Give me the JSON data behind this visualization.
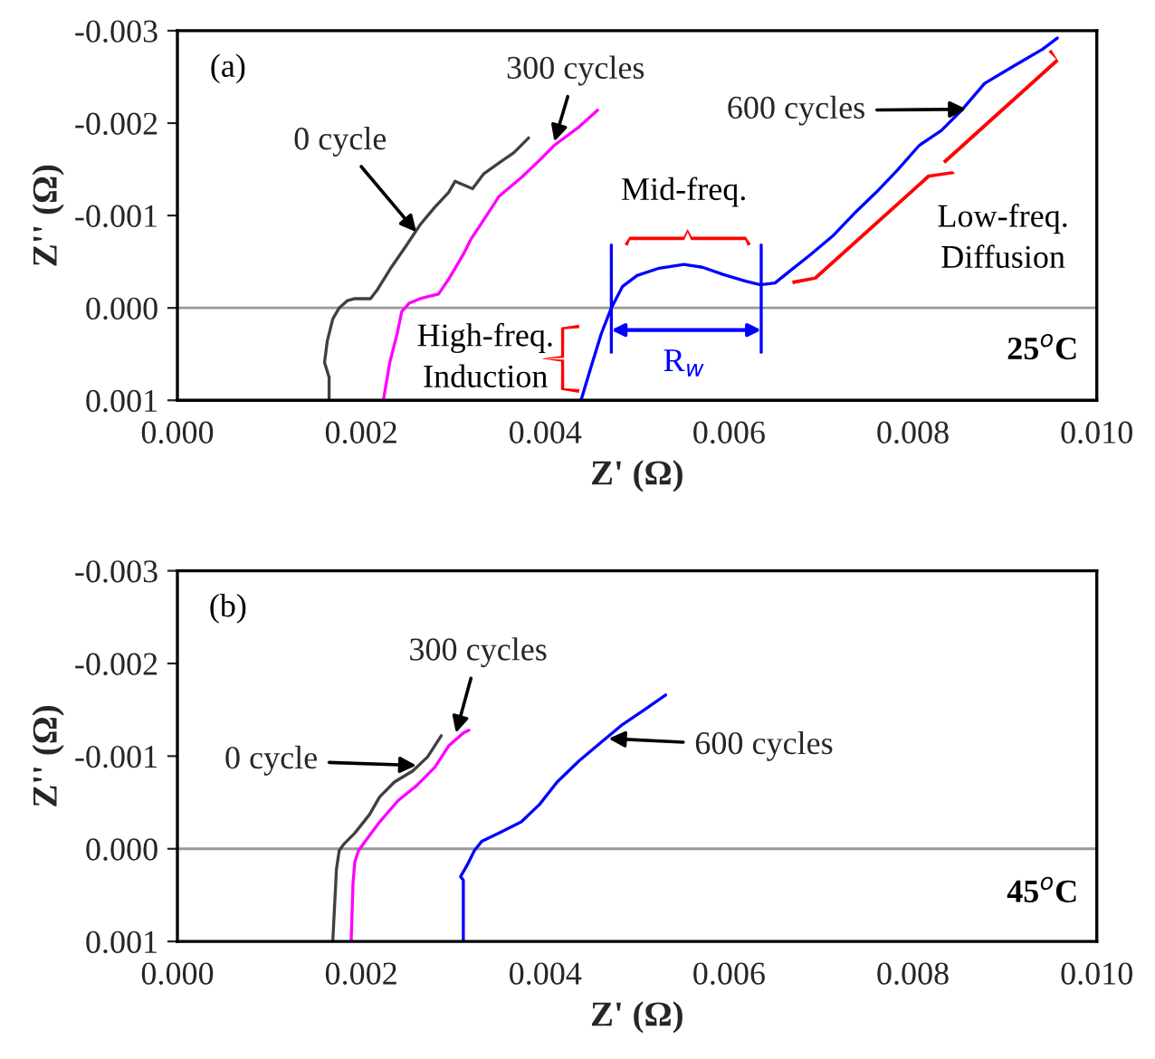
{
  "chart_data": [
    {
      "type": "line",
      "xlabel": "Z' (Ω)",
      "ylabel": "Z'' (Ω)",
      "xlim": [
        0.0,
        0.01
      ],
      "xticks": [
        {
          "value": 0.0,
          "label": "0.000"
        },
        {
          "value": 0.002,
          "label": "0.002"
        },
        {
          "value": 0.004,
          "label": "0.004"
        },
        {
          "value": 0.006,
          "label": "0.006"
        },
        {
          "value": 0.008,
          "label": "0.008"
        },
        {
          "value": 0.01,
          "label": "0.010"
        }
      ],
      "ylim": [
        0.001,
        -0.003
      ],
      "yticks": [
        {
          "value": -0.003,
          "label": "-0.003"
        },
        {
          "value": -0.002,
          "label": "-0.002"
        },
        {
          "value": -0.001,
          "label": "-0.001"
        },
        {
          "value": 0.0,
          "label": "0.000"
        },
        {
          "value": 0.001,
          "label": "0.001"
        }
      ],
      "grid": false,
      "legend": false,
      "line_style": "solid",
      "marker": "none",
      "ref_lines": [
        {
          "axis": "y",
          "value": 0.0,
          "color": "#999999"
        }
      ],
      "series": [
        {
          "color": "#404040",
          "x": [
            0.00165,
            0.00165,
            0.0016,
            0.00163,
            0.00169,
            0.00176,
            0.00185,
            0.00193,
            0.0021,
            0.00217,
            0.00232,
            0.00248,
            0.00264,
            0.0028,
            0.00295,
            0.00302,
            0.00321,
            0.00333,
            0.0035,
            0.00366,
            0.00382
          ],
          "values": [
            0.001,
            0.00075,
            0.00059,
            0.00036,
            0.00012,
            0.0,
            -8e-05,
            -0.0001,
            -0.0001,
            -0.00019,
            -0.00043,
            -0.00066,
            -0.0009,
            -0.00109,
            -0.00125,
            -0.00137,
            -0.00129,
            -0.00145,
            -0.00157,
            -0.00168,
            -0.00184
          ]
        },
        {
          "color": "#ff00ff",
          "x": [
            0.00224,
            0.00231,
            0.00239,
            0.00244,
            0.00252,
            0.00264,
            0.00284,
            0.00295,
            0.00311,
            0.00319,
            0.00335,
            0.0035,
            0.00374,
            0.00394,
            0.0041,
            0.00437,
            0.00457
          ],
          "values": [
            0.001,
            0.00059,
            0.00028,
            4e-05,
            -5e-05,
            -0.0001,
            -0.00015,
            -0.00031,
            -0.00058,
            -0.00074,
            -0.00098,
            -0.00121,
            -0.00141,
            -0.0016,
            -0.00176,
            -0.00196,
            -0.00214
          ]
        },
        {
          "color": "#0000ff",
          "x": [
            0.00439,
            0.00449,
            0.00461,
            0.00472,
            0.00484,
            0.005,
            0.00524,
            0.00551,
            0.00571,
            0.00594,
            0.00618,
            0.00634,
            0.0065,
            0.00665,
            0.00689,
            0.00713,
            0.00736,
            0.0076,
            0.00783,
            0.00807,
            0.00831,
            0.00854,
            0.00878,
            0.0091,
            0.00941,
            0.00957
          ],
          "values": [
            0.001,
            0.00067,
            0.00028,
            0.0,
            -0.00023,
            -0.00035,
            -0.00043,
            -0.00047,
            -0.00044,
            -0.00036,
            -0.00029,
            -0.00025,
            -0.00027,
            -0.00039,
            -0.00058,
            -0.00078,
            -0.00102,
            -0.00125,
            -0.00149,
            -0.00176,
            -0.00192,
            -0.00215,
            -0.00243,
            -0.00262,
            -0.0028,
            -0.00292
          ]
        }
      ],
      "annotations": [
        "(a)",
        {
          "text": "0 cycle",
          "x": 0.0026,
          "y": -0.00082
        },
        {
          "text": "300 cycles",
          "x": 0.0041,
          "y": -0.0018
        },
        {
          "text": "600 cycles",
          "x": 0.00858,
          "y": -0.00215
        },
        "Mid-freq.",
        "Low-freq.\nDiffusion",
        "High-freq.\nInduction",
        "25$^{o}$C",
        "R$_{w}$"
      ]
    },
    {
      "type": "line",
      "xlabel": "Z' (Ω)",
      "ylabel": "Z'' (Ω)",
      "xlim": [
        0.0,
        0.01
      ],
      "xticks": [
        {
          "value": 0.0,
          "label": "0.000"
        },
        {
          "value": 0.002,
          "label": "0.002"
        },
        {
          "value": 0.004,
          "label": "0.004"
        },
        {
          "value": 0.006,
          "label": "0.006"
        },
        {
          "value": 0.008,
          "label": "0.008"
        },
        {
          "value": 0.01,
          "label": "0.010"
        }
      ],
      "ylim": [
        0.001,
        -0.003
      ],
      "yticks": [
        {
          "value": -0.003,
          "label": "-0.003"
        },
        {
          "value": -0.002,
          "label": "-0.002"
        },
        {
          "value": -0.001,
          "label": "-0.001"
        },
        {
          "value": 0.0,
          "label": "0.000"
        },
        {
          "value": 0.001,
          "label": "0.001"
        }
      ],
      "grid": false,
      "legend": false,
      "line_style": "solid",
      "marker": "none",
      "ref_lines": [
        {
          "axis": "y",
          "value": 0.0,
          "color": "#999999"
        }
      ],
      "series": [
        {
          "color": "#404040",
          "x": [
            0.00169,
            0.00171,
            0.00173,
            0.00176,
            0.00181,
            0.00193,
            0.00209,
            0.0022,
            0.00236,
            0.00256,
            0.00272,
            0.00287
          ],
          "values": [
            0.001,
            0.00061,
            0.00022,
            2e-05,
            -5e-05,
            -0.00017,
            -0.00037,
            -0.00056,
            -0.00072,
            -0.00084,
            -0.00099,
            -0.00122
          ]
        },
        {
          "color": "#ff00ff",
          "x": [
            0.00189,
            0.00191,
            0.00193,
            0.00197,
            0.00205,
            0.0022,
            0.0024,
            0.0026,
            0.0028,
            0.00295,
            0.00311,
            0.00317
          ],
          "values": [
            0.001,
            0.00037,
            0.00014,
            2e-05,
            -9e-05,
            -0.00029,
            -0.00052,
            -0.00068,
            -0.00088,
            -0.00111,
            -0.00125,
            -0.00128
          ]
        },
        {
          "color": "#0000ff",
          "x": [
            0.00311,
            0.00311,
            0.00308,
            0.00315,
            0.00323,
            0.00331,
            0.0035,
            0.00374,
            0.00394,
            0.00413,
            0.00437,
            0.00461,
            0.00484,
            0.00508,
            0.00531
          ],
          "values": [
            0.001,
            0.00034,
            0.0003,
            0.00018,
            2e-05,
            -8e-05,
            -0.00017,
            -0.00029,
            -0.00048,
            -0.00072,
            -0.00095,
            -0.00115,
            -0.00134,
            -0.0015,
            -0.00166
          ]
        }
      ],
      "annotations": [
        "(b)",
        {
          "text": "0 cycle",
          "x": 0.0026,
          "y": -0.0009
        },
        {
          "text": "300 cycles",
          "x": 0.00303,
          "y": -0.00125
        },
        {
          "text": "600 cycles",
          "x": 0.00469,
          "y": -0.00119
        },
        "45$^{o}$C"
      ]
    }
  ]
}
